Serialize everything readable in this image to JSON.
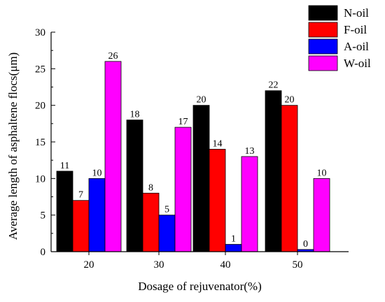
{
  "chart_data": {
    "type": "bar",
    "title": "",
    "xlabel": "Dosage of rejuvenator(%)",
    "ylabel": "Average length of asphaltene flocs(μm)",
    "categories": [
      "20",
      "30",
      "40",
      "50"
    ],
    "ylim": [
      0,
      30
    ],
    "yticks": [
      0,
      5,
      10,
      15,
      20,
      25,
      30
    ],
    "grid": false,
    "legend_position": "top-right",
    "series": [
      {
        "name": "N-oil",
        "color": "#000000",
        "values": [
          11,
          18,
          20,
          22
        ],
        "labels": [
          "11",
          "18",
          "20",
          "22"
        ]
      },
      {
        "name": "F-oil",
        "color": "#ff0000",
        "values": [
          7,
          8,
          14,
          20
        ],
        "labels": [
          "7",
          "8",
          "14",
          "20"
        ]
      },
      {
        "name": "A-oil",
        "color": "#0000ff",
        "values": [
          10,
          5,
          1,
          0.3
        ],
        "labels": [
          "10",
          "5",
          "1",
          "0"
        ]
      },
      {
        "name": "W-oil",
        "color": "#ff00ff",
        "values": [
          26,
          17,
          13,
          10
        ],
        "labels": [
          "26",
          "17",
          "13",
          "10"
        ]
      }
    ]
  }
}
